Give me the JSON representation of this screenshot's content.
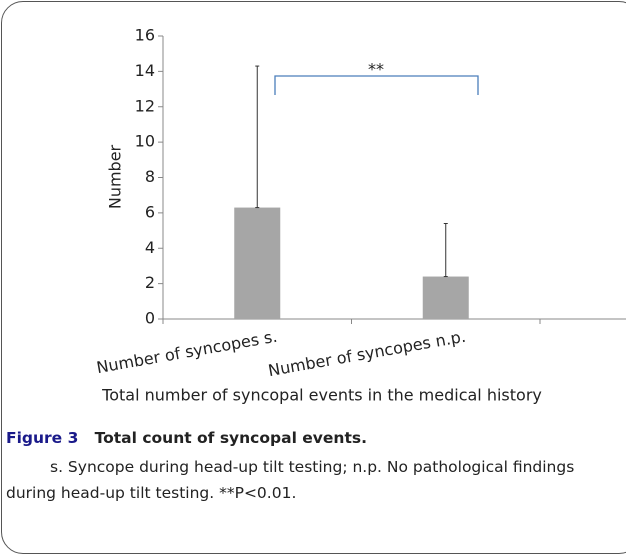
{
  "chart_data": {
    "type": "bar",
    "categories": [
      "Number of syncopes s.",
      "Number of syncopes n.p."
    ],
    "values": [
      6.3,
      2.4
    ],
    "errors": [
      8.0,
      3.0
    ],
    "color": "#a6a6a6",
    "ylabel": "Number",
    "xlabel": "Total number of syncopal events in the medical history",
    "ylim": [
      0,
      16
    ],
    "yticks": [
      0,
      2,
      4,
      6,
      8,
      10,
      12,
      14,
      16
    ],
    "annotation": "**"
  },
  "caption": {
    "label": "Figure 3",
    "title": "Total count of syncopal events."
  },
  "note": "s. Syncope during head-up tilt testing; n.p. No pathological findings during head-up tilt testing. **P<0.01."
}
